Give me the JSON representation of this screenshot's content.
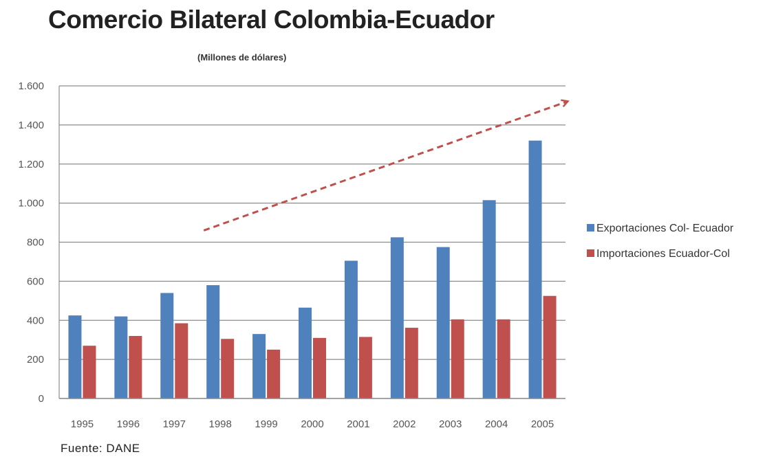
{
  "chart_data": {
    "type": "bar",
    "title": "Comercio Bilateral Colombia-Ecuador",
    "subtitle": "(Millones de dólares)",
    "source": "Fuente: DANE",
    "categories": [
      "1995",
      "1996",
      "1997",
      "1998",
      "1999",
      "2000",
      "2001",
      "2002",
      "2003",
      "2004",
      "2005"
    ],
    "series": [
      {
        "name": "Exportaciones Col- Ecuador",
        "color": "#4f81bd",
        "values": [
          425,
          420,
          540,
          580,
          330,
          465,
          705,
          825,
          775,
          1015,
          1320
        ]
      },
      {
        "name": "Importaciones Ecuador-Col",
        "color": "#c0504d",
        "values": [
          270,
          320,
          385,
          305,
          250,
          310,
          315,
          362,
          405,
          405,
          525
        ]
      }
    ],
    "ylim": [
      0,
      1600
    ],
    "yticks": [
      0,
      200,
      400,
      600,
      800,
      1000,
      1200,
      1400,
      1600
    ],
    "ytick_labels": [
      "0",
      "200",
      "400",
      "600",
      "800",
      "1.000",
      "1.200",
      "1.400",
      "1.600"
    ],
    "grid": true,
    "legend_position": "right",
    "annotation": {
      "type": "dashed-trend-arrow",
      "color": "#c0504d",
      "from": {
        "category": "1998",
        "y": 860
      },
      "to": {
        "category": "2005",
        "y": 1520
      }
    }
  }
}
